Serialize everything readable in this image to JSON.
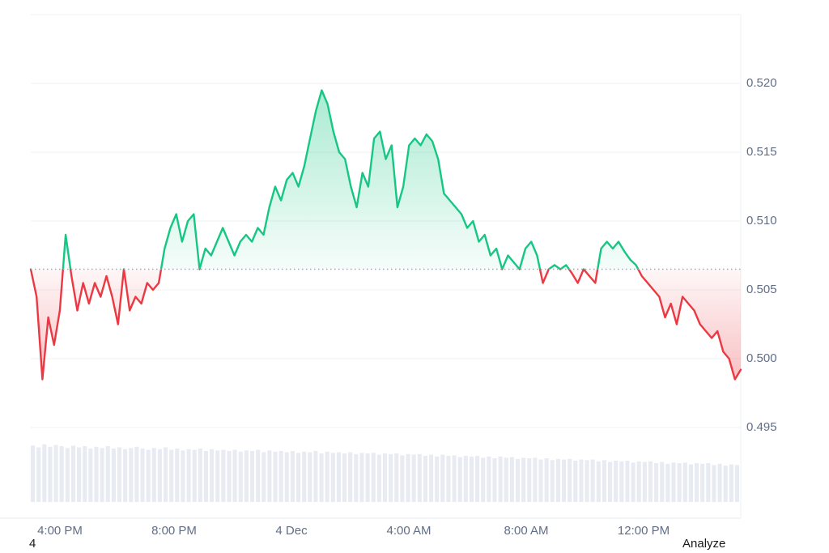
{
  "page": {
    "bottom_left_text": "4",
    "analyze_label": "Analyze"
  },
  "chart_data": {
    "type": "area",
    "subtype": "baseline-price-chart-with-volume",
    "title": "",
    "xlabel": "",
    "ylabel": "",
    "legend": "none",
    "grid": "horizontal",
    "ylim": [
      0.493,
      0.5255
    ],
    "baseline": 0.5065,
    "y_ticks": [
      0.52,
      0.515,
      0.51,
      0.505,
      0.5,
      0.495
    ],
    "y_grid_extra": [
      0.525
    ],
    "x_tick_labels": [
      {
        "label": "4:00 PM",
        "pos": 0.041
      },
      {
        "label": "8:00 PM",
        "pos": 0.202
      },
      {
        "label": "4 Dec",
        "pos": 0.367
      },
      {
        "label": "4:00 AM",
        "pos": 0.533
      },
      {
        "label": "8:00 AM",
        "pos": 0.698
      },
      {
        "label": "12:00 PM",
        "pos": 0.863
      }
    ],
    "series": [
      {
        "name": "price",
        "values": [
          0.5065,
          0.5045,
          0.4985,
          0.503,
          0.501,
          0.5035,
          0.509,
          0.506,
          0.5035,
          0.5055,
          0.504,
          0.5055,
          0.5045,
          0.506,
          0.5045,
          0.5025,
          0.5065,
          0.5035,
          0.5045,
          0.504,
          0.5055,
          0.505,
          0.5055,
          0.508,
          0.5095,
          0.5105,
          0.5085,
          0.51,
          0.5105,
          0.5065,
          0.508,
          0.5075,
          0.5085,
          0.5095,
          0.5085,
          0.5075,
          0.5085,
          0.509,
          0.5085,
          0.5095,
          0.509,
          0.511,
          0.5125,
          0.5115,
          0.513,
          0.5135,
          0.5125,
          0.514,
          0.516,
          0.518,
          0.5195,
          0.5185,
          0.5165,
          0.515,
          0.5145,
          0.5125,
          0.511,
          0.5135,
          0.5125,
          0.516,
          0.5165,
          0.5145,
          0.5155,
          0.511,
          0.5125,
          0.5155,
          0.516,
          0.5155,
          0.5163,
          0.5158,
          0.5145,
          0.512,
          0.5115,
          0.511,
          0.5105,
          0.5095,
          0.51,
          0.5085,
          0.509,
          0.5075,
          0.508,
          0.5065,
          0.5075,
          0.507,
          0.5065,
          0.508,
          0.5085,
          0.5075,
          0.5055,
          0.5065,
          0.5068,
          0.5065,
          0.5068,
          0.5062,
          0.5055,
          0.5065,
          0.506,
          0.5055,
          0.508,
          0.5085,
          0.508,
          0.5085,
          0.5078,
          0.5072,
          0.5068,
          0.506,
          0.5055,
          0.505,
          0.5045,
          0.503,
          0.504,
          0.5025,
          0.5045,
          0.504,
          0.5035,
          0.5025,
          0.502,
          0.5015,
          0.502,
          0.5005,
          0.5,
          0.4985,
          0.4992
        ]
      }
    ],
    "volume_normalized": [
      0.93,
      0.9,
      0.95,
      0.91,
      0.94,
      0.92,
      0.89,
      0.93,
      0.9,
      0.92,
      0.88,
      0.91,
      0.89,
      0.92,
      0.88,
      0.9,
      0.87,
      0.89,
      0.91,
      0.88,
      0.86,
      0.89,
      0.87,
      0.9,
      0.86,
      0.88,
      0.85,
      0.87,
      0.86,
      0.88,
      0.84,
      0.87,
      0.85,
      0.86,
      0.84,
      0.86,
      0.83,
      0.85,
      0.84,
      0.86,
      0.82,
      0.85,
      0.83,
      0.84,
      0.82,
      0.84,
      0.81,
      0.83,
      0.82,
      0.84,
      0.8,
      0.83,
      0.81,
      0.82,
      0.8,
      0.82,
      0.79,
      0.81,
      0.8,
      0.81,
      0.78,
      0.8,
      0.79,
      0.8,
      0.77,
      0.79,
      0.78,
      0.79,
      0.76,
      0.78,
      0.75,
      0.78,
      0.76,
      0.77,
      0.74,
      0.76,
      0.75,
      0.76,
      0.73,
      0.75,
      0.72,
      0.75,
      0.73,
      0.74,
      0.71,
      0.73,
      0.72,
      0.73,
      0.7,
      0.72,
      0.69,
      0.71,
      0.7,
      0.71,
      0.68,
      0.7,
      0.69,
      0.7,
      0.67,
      0.69,
      0.66,
      0.68,
      0.67,
      0.68,
      0.65,
      0.67,
      0.66,
      0.67,
      0.64,
      0.66,
      0.63,
      0.65,
      0.64,
      0.65,
      0.62,
      0.64,
      0.63,
      0.64,
      0.61,
      0.63,
      0.6,
      0.62,
      0.61
    ],
    "colors": {
      "up": "#16c784",
      "down": "#ea3943",
      "grid": "#eff2f5",
      "axis_line": "#e6e9ee",
      "baseline_dots": "#a0a7b4",
      "volume": "#e8ecf2",
      "axis_text": "#616e85"
    }
  }
}
